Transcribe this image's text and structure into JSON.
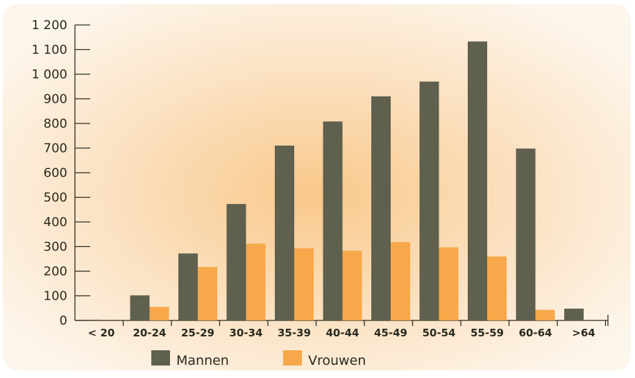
{
  "chart_data": {
    "type": "bar",
    "categories": [
      "< 20",
      "20-24",
      "25-29",
      "30-34",
      "35-39",
      "40-44",
      "45-49",
      "50-54",
      "55-59",
      "60-64",
      ">64"
    ],
    "series": [
      {
        "name": "Mannen",
        "color": "#5f604e",
        "values": [
          3,
          102,
          272,
          473,
          710,
          808,
          910,
          970,
          1133,
          698,
          48
        ]
      },
      {
        "name": "Vrouwen",
        "color": "#f7a84a",
        "values": [
          0,
          55,
          217,
          312,
          293,
          283,
          318,
          297,
          260,
          43,
          0
        ]
      }
    ],
    "title": "",
    "xlabel": "",
    "ylabel": "",
    "ylim": [
      0,
      1200
    ],
    "yticks": [
      0,
      100,
      200,
      300,
      400,
      500,
      600,
      700,
      800,
      900,
      1000,
      1100,
      1200
    ],
    "ytick_labels": [
      "0",
      "100",
      "200",
      "300",
      "400",
      "500",
      "600",
      "700",
      "800",
      "900",
      "1 000",
      "1 100",
      "1 200"
    ],
    "grid": false,
    "legend_position": "bottom",
    "colors": {
      "background_center": "#f9cc94",
      "background_edge": "#fdf5ea",
      "axis": "#2a2a1e"
    }
  }
}
